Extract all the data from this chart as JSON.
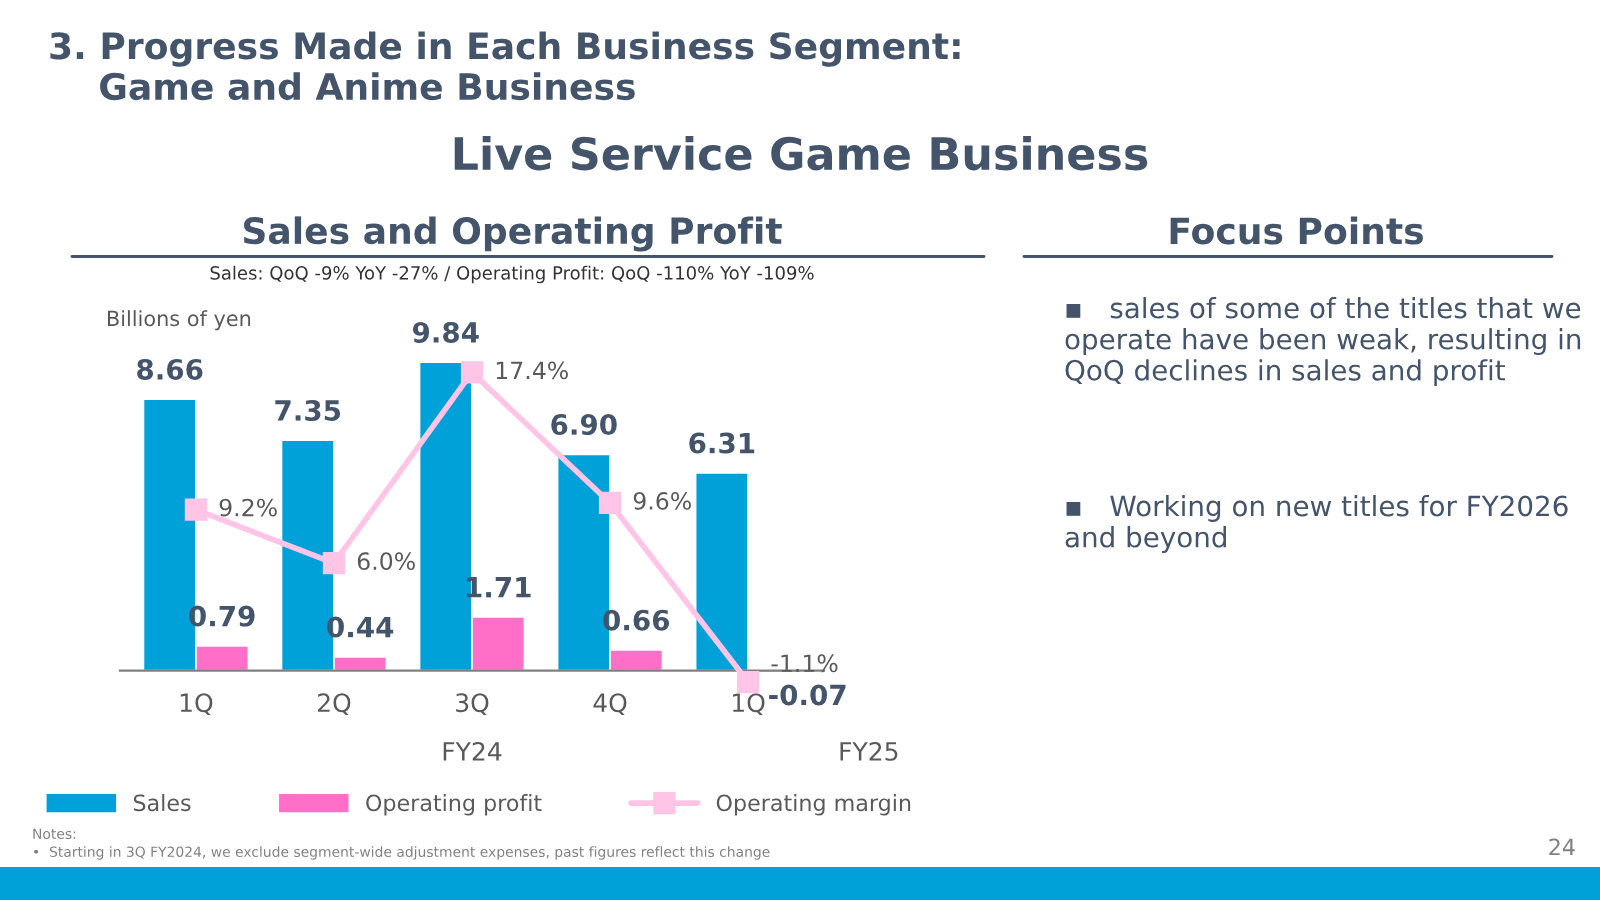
{
  "chart_data": {
    "type": "bar",
    "title": "Live Service Game Business",
    "subtitle": "Sales and Operating Profit",
    "categories": [
      "1Q",
      "2Q",
      "3Q",
      "4Q",
      "1Q"
    ],
    "series": [
      {
        "name": "Sales",
        "color": "#00a0d8",
        "values": [
          8.66,
          7.35,
          9.84,
          6.9,
          6.31
        ],
        "value_labels": [
          "8.66",
          "7.35",
          "9.84",
          "6.90",
          "6.31"
        ]
      },
      {
        "name": "Operating profit",
        "color": "#ff6ec7",
        "values": [
          0.79,
          0.44,
          1.71,
          0.66,
          -0.07
        ],
        "value_labels": [
          "0.79",
          "0.44",
          "1.71",
          "0.66",
          "-0.07"
        ]
      },
      {
        "name": "Operating margin",
        "type": "line",
        "axis": "y2",
        "color": "#ffc4e6",
        "values": [
          9.2,
          6.0,
          17.4,
          9.6,
          -1.1
        ],
        "value_labels": [
          "9.2%",
          "6.0%",
          "17.4%",
          "9.6%",
          "-1.1%"
        ]
      }
    ],
    "ylabel": "Billions of yen",
    "marker": "square",
    "legend": "bottom",
    "annotations": [
      "3. Progress Made in Each Business Segment:\n    Game and Anime Business",
      "Sales: QoQ -9% YoY -27% / Operating Profit: QoQ -110% YoY -109%",
      "FY24",
      "FY25",
      "Focus Points",
      "▪   sales of some of the titles that we operate have been weak, resulting in QoQ declines in sales and profit",
      "▪   Working on new titles for FY2026 and beyond",
      "Notes:",
      "•  Starting in 3Q FY2024, we exclude segment-wide adjustment expenses, past figures reflect this change",
      "24"
    ]
  }
}
